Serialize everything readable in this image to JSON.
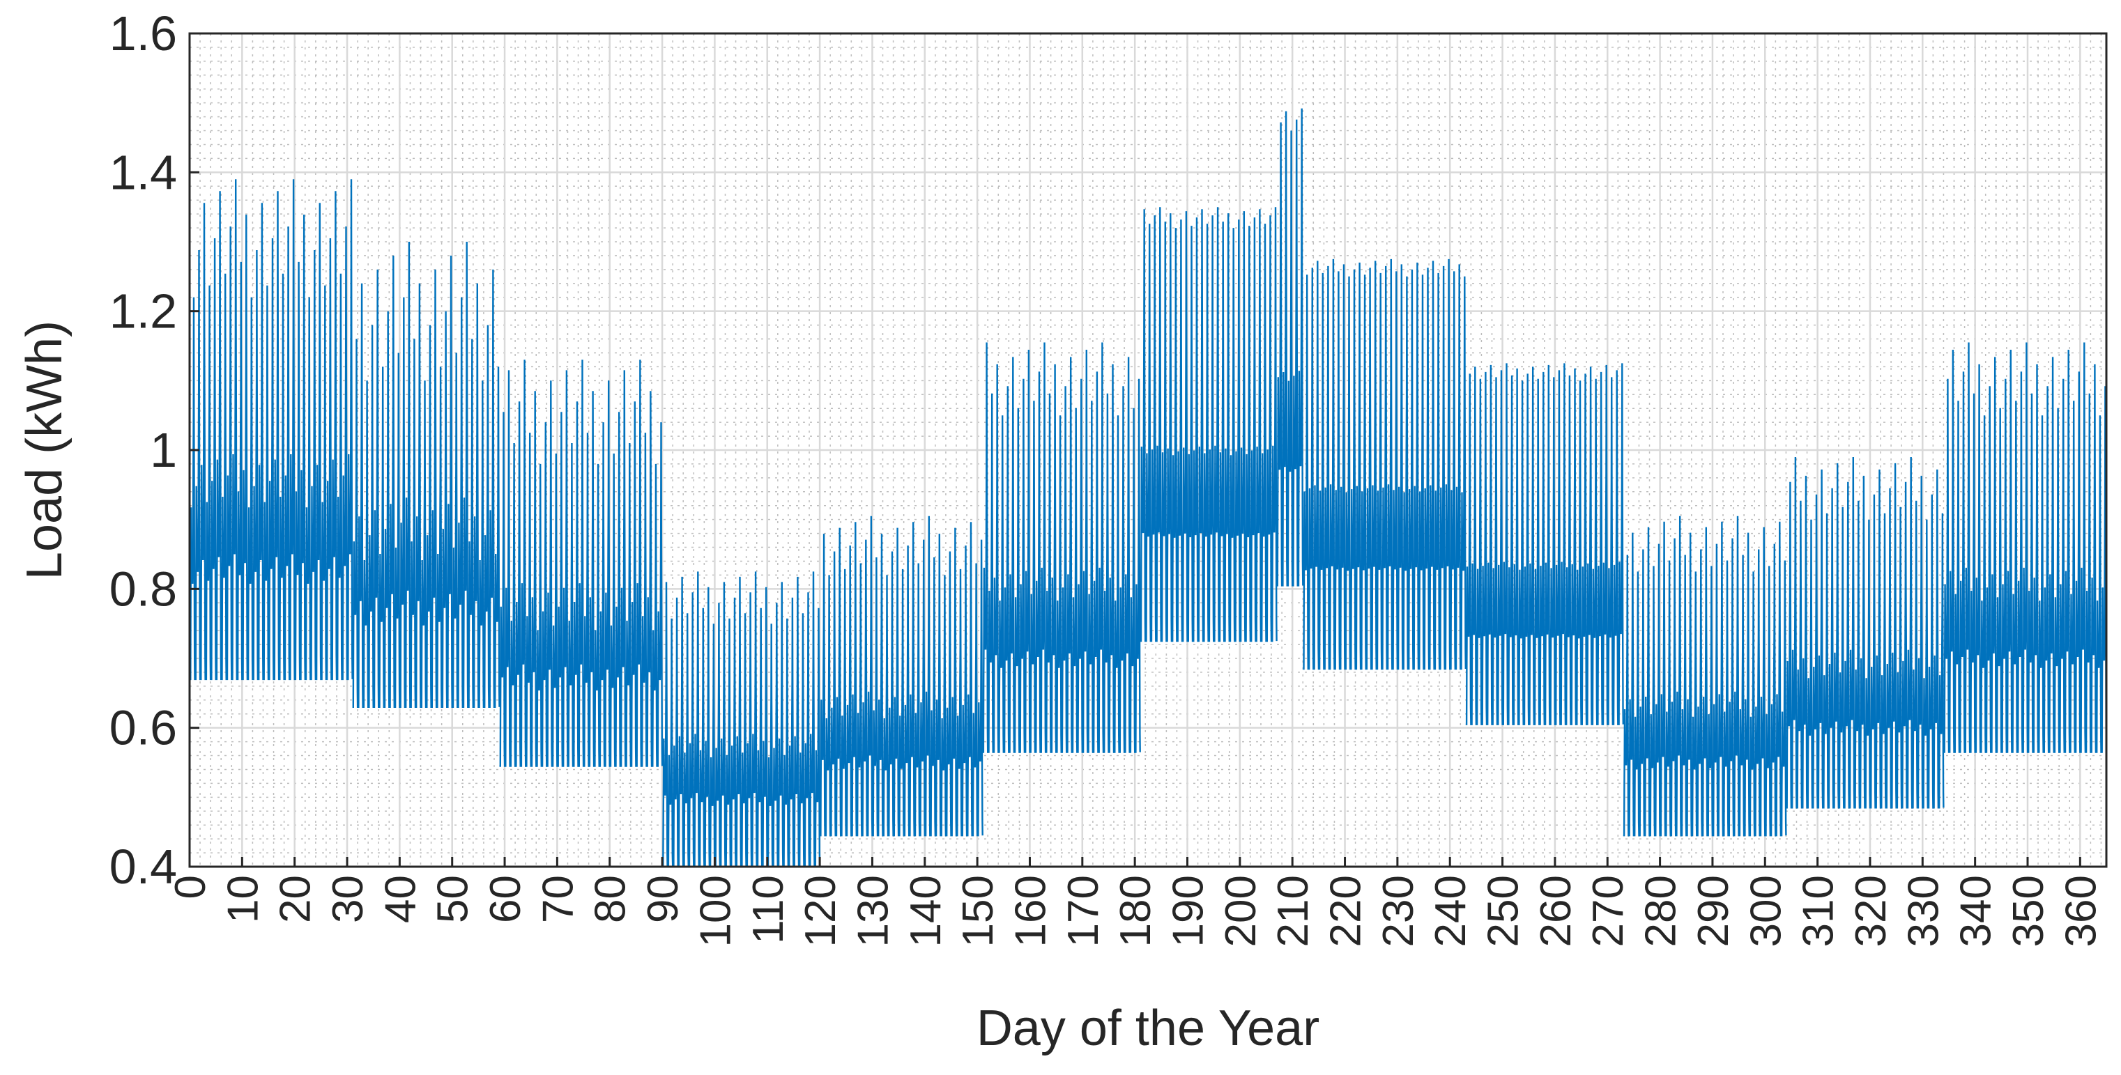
{
  "chart_data": {
    "type": "line",
    "title": "",
    "xlabel": "Day of the Year",
    "ylabel": "Load (kWh)",
    "xlim": [
      0,
      365
    ],
    "ylim": [
      0.4,
      1.6
    ],
    "grid": "major and minor",
    "legend": "none",
    "line_color": "#0072BD",
    "x_ticks": [
      "0",
      "10",
      "20",
      "30",
      "40",
      "50",
      "60",
      "70",
      "80",
      "90",
      "100",
      "110",
      "120",
      "130",
      "140",
      "150",
      "160",
      "170",
      "180",
      "190",
      "200",
      "210",
      "220",
      "230",
      "240",
      "250",
      "260",
      "270",
      "280",
      "290",
      "300",
      "310",
      "320",
      "330",
      "340",
      "350",
      "360"
    ],
    "y_ticks": [
      "0.4",
      "0.6",
      "0.8",
      "1",
      "1.2",
      "1.4",
      "1.6"
    ],
    "series": [
      {
        "resolution": "hourly, daily profile repeated within each period",
        "periods": [
          {
            "start_day": 0,
            "end_day": 31,
            "min": 0.67,
            "max": 1.39,
            "daily_peak_range": [
              1.22,
              1.39
            ]
          },
          {
            "start_day": 31,
            "end_day": 59,
            "min": 0.63,
            "max": 1.3,
            "daily_peak_range": [
              1.1,
              1.3
            ]
          },
          {
            "start_day": 59,
            "end_day": 90,
            "min": 0.545,
            "max": 1.13,
            "daily_peak_range": [
              0.98,
              1.13
            ]
          },
          {
            "start_day": 90,
            "end_day": 120,
            "min": 0.4,
            "max": 0.825,
            "daily_peak_range": [
              0.75,
              0.825
            ]
          },
          {
            "start_day": 120,
            "end_day": 151,
            "min": 0.445,
            "max": 0.905,
            "daily_peak_range": [
              0.82,
              0.905
            ]
          },
          {
            "start_day": 151,
            "end_day": 181,
            "min": 0.565,
            "max": 1.155,
            "daily_peak_range": [
              1.05,
              1.155
            ]
          },
          {
            "start_day": 181,
            "end_day": 207,
            "min": 0.725,
            "max": 1.35,
            "daily_peak_range": [
              1.32,
              1.35
            ]
          },
          {
            "start_day": 207,
            "end_day": 212,
            "min": 0.805,
            "max": 1.5,
            "daily_peak_range": [
              1.46,
              1.5
            ]
          },
          {
            "start_day": 212,
            "end_day": 243,
            "min": 0.685,
            "max": 1.275,
            "daily_peak_range": [
              1.25,
              1.275
            ]
          },
          {
            "start_day": 243,
            "end_day": 273,
            "min": 0.605,
            "max": 1.125,
            "daily_peak_range": [
              1.1,
              1.125
            ]
          },
          {
            "start_day": 273,
            "end_day": 304,
            "min": 0.445,
            "max": 0.905,
            "daily_peak_range": [
              0.825,
              0.905
            ]
          },
          {
            "start_day": 304,
            "end_day": 334,
            "min": 0.485,
            "max": 0.99,
            "daily_peak_range": [
              0.9,
              0.99
            ]
          },
          {
            "start_day": 334,
            "end_day": 365,
            "min": 0.565,
            "max": 1.155,
            "daily_peak_range": [
              1.05,
              1.155
            ]
          }
        ]
      }
    ]
  }
}
